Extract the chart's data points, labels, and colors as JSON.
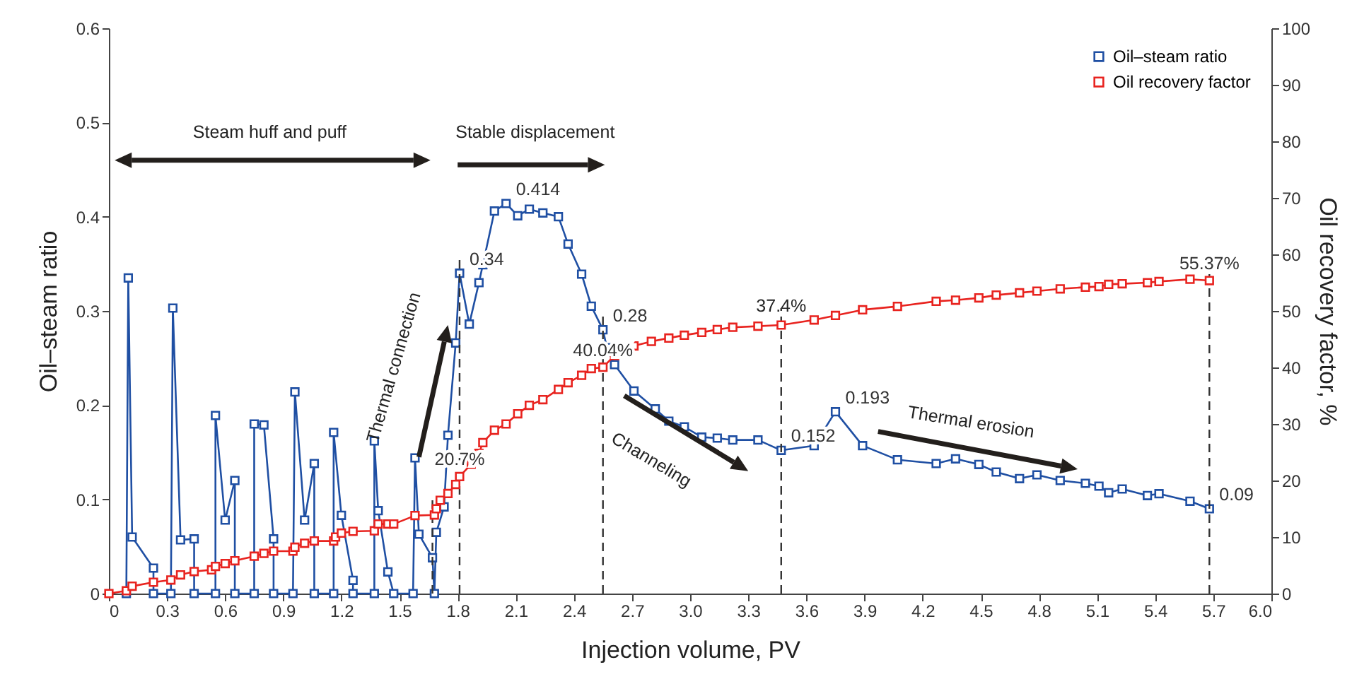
{
  "chart_data": {
    "type": "line",
    "xlabel": "Injection volume, PV",
    "ylabel": "Oil–steam ratio",
    "y2label": "Oil recovery factor, %",
    "xlim": [
      0,
      6
    ],
    "xticks": [
      0,
      0.3,
      0.6,
      0.9,
      1.2,
      1.5,
      1.8,
      2.1,
      2.4,
      2.7,
      {
        "value": 3,
        "label": "3.0"
      },
      3.3,
      3.6,
      3.9,
      4.2,
      4.5,
      4.8,
      5.1,
      5.4,
      5.7,
      {
        "value": 6,
        "label": "6.0"
      }
    ],
    "ylim": [
      0,
      0.6
    ],
    "yticks": [
      0,
      0.1,
      0.2,
      0.3,
      0.4,
      0.5,
      0.6
    ],
    "y2lim": [
      0,
      100
    ],
    "y2ticks": [
      0,
      10,
      20,
      30,
      40,
      50,
      60,
      70,
      80,
      90,
      100
    ],
    "marker": "square",
    "legend": "top right",
    "series": [
      {
        "name": "Oil–steam ratio",
        "color": "#1f4fa3",
        "x": [
          0.09,
          0.1,
          0.12,
          0.23,
          0.23,
          0.32,
          0.33,
          0.37,
          0.44,
          0.44,
          0.55,
          0.55,
          0.6,
          0.65,
          0.65,
          0.75,
          0.75,
          0.8,
          0.85,
          0.85,
          0.95,
          0.96,
          1.01,
          1.06,
          1.06,
          1.16,
          1.16,
          1.2,
          1.26,
          1.26,
          1.37,
          1.37,
          1.39,
          1.44,
          1.47,
          1.57,
          1.58,
          1.6,
          1.67,
          1.68,
          1.69,
          1.73,
          1.75,
          1.79,
          1.81,
          1.86,
          1.91,
          1.93,
          1.99,
          2.05,
          2.11,
          2.17,
          2.24,
          2.32,
          2.37,
          2.44,
          2.49,
          2.55,
          2.57,
          2.61,
          2.71,
          2.82,
          2.89,
          2.97,
          3.06,
          3.14,
          3.22,
          3.35,
          3.47,
          3.64,
          3.75,
          3.89,
          4.07,
          4.27,
          4.37,
          4.49,
          4.58,
          4.7,
          4.79,
          4.91,
          5.04,
          5.11,
          5.16,
          5.23,
          5.36,
          5.42,
          5.58,
          5.68
        ],
        "values": [
          0,
          0.335,
          0.06,
          0.027,
          0,
          0,
          0.303,
          0.057,
          0.058,
          0,
          0,
          0.189,
          0.078,
          0.12,
          0,
          0,
          0.18,
          0.179,
          0.058,
          0,
          0,
          0.214,
          0.078,
          0.138,
          0,
          0,
          0.171,
          0.083,
          0.014,
          0,
          0,
          0.162,
          0.088,
          0.023,
          0,
          0,
          0.144,
          0.063,
          0.038,
          0,
          0.065,
          0.092,
          0.168,
          0.266,
          0.34,
          0.286,
          0.33,
          0.349,
          0.406,
          0.414,
          0.401,
          0.408,
          0.404,
          0.4,
          0.371,
          0.339,
          0.305,
          0.28,
          0.261,
          0.243,
          0.215,
          0.196,
          0.183,
          0.177,
          0.166,
          0.165,
          0.163,
          0.163,
          0.152,
          0.157,
          0.193,
          0.157,
          0.142,
          0.138,
          0.143,
          0.137,
          0.129,
          0.122,
          0.126,
          0.12,
          0.117,
          0.114,
          0.107,
          0.111,
          0.104,
          0.106,
          0.098,
          0.09
        ],
        "value_labels": [
          null,
          null,
          null,
          null,
          null,
          null,
          null,
          null,
          null,
          null,
          null,
          null,
          null,
          null,
          null,
          null,
          null,
          null,
          null,
          null,
          null,
          null,
          null,
          null,
          null,
          null,
          null,
          null,
          null,
          null,
          null,
          null,
          null,
          null,
          null,
          null,
          null,
          null,
          null,
          null,
          null,
          null,
          null,
          null,
          "0.34",
          null,
          null,
          null,
          null,
          "0.414",
          null,
          null,
          null,
          null,
          null,
          null,
          null,
          "0.28",
          null,
          null,
          null,
          null,
          null,
          null,
          null,
          null,
          null,
          null,
          "0.152",
          null,
          "0.193",
          null,
          null,
          null,
          null,
          null,
          null,
          null,
          null,
          null,
          null,
          null,
          null,
          null,
          null,
          null,
          null,
          "0.09"
        ]
      },
      {
        "name": "Oil recovery factor",
        "color": "#e8231f",
        "axis": "y2",
        "x": [
          0,
          0.09,
          0.12,
          0.23,
          0.32,
          0.37,
          0.44,
          0.53,
          0.55,
          0.6,
          0.65,
          0.75,
          0.8,
          0.85,
          0.95,
          0.96,
          1.01,
          1.06,
          1.16,
          1.17,
          1.2,
          1.26,
          1.37,
          1.39,
          1.44,
          1.47,
          1.58,
          1.68,
          1.69,
          1.71,
          1.75,
          1.79,
          1.81,
          1.87,
          1.91,
          1.93,
          1.99,
          2.05,
          2.11,
          2.17,
          2.24,
          2.32,
          2.37,
          2.44,
          2.49,
          2.55,
          2.61,
          2.71,
          2.8,
          2.89,
          2.97,
          3.06,
          3.14,
          3.22,
          3.35,
          3.47,
          3.64,
          3.75,
          3.89,
          4.07,
          4.27,
          4.37,
          4.49,
          4.58,
          4.7,
          4.79,
          4.91,
          5.04,
          5.11,
          5.16,
          5.23,
          5.36,
          5.42,
          5.58,
          5.68
        ],
        "values": [
          0,
          0.5,
          1.3,
          2.0,
          2.4,
          3.3,
          3.9,
          4.2,
          4.8,
          5.3,
          5.8,
          6.6,
          7.1,
          7.5,
          7.5,
          8.2,
          8.9,
          9.3,
          9.3,
          10.0,
          10.7,
          11.0,
          11.1,
          12.3,
          12.3,
          12.3,
          13.8,
          13.9,
          15.0,
          16.5,
          17.7,
          19.3,
          20.7,
          22.9,
          24.8,
          26.7,
          28.9,
          30.0,
          31.8,
          33.3,
          34.3,
          36.1,
          37.3,
          38.6,
          39.8,
          40.04,
          42.1,
          43.8,
          44.6,
          45.2,
          45.7,
          46.2,
          46.7,
          47.1,
          47.3,
          47.5,
          48.4,
          49.2,
          50.2,
          50.8,
          51.7,
          51.9,
          52.3,
          52.8,
          53.2,
          53.5,
          53.9,
          54.2,
          54.3,
          54.7,
          54.8,
          55.0,
          55.2,
          55.6,
          55.37
        ],
        "value_labels": [
          null,
          null,
          null,
          null,
          null,
          null,
          null,
          null,
          null,
          null,
          null,
          null,
          null,
          null,
          null,
          null,
          null,
          null,
          null,
          null,
          null,
          null,
          null,
          null,
          null,
          null,
          null,
          null,
          null,
          null,
          null,
          null,
          "20.7%",
          null,
          null,
          null,
          null,
          null,
          null,
          null,
          null,
          null,
          null,
          null,
          null,
          "40.04%",
          null,
          null,
          null,
          null,
          null,
          null,
          null,
          null,
          null,
          null,
          null,
          null,
          null,
          null,
          null,
          null,
          null,
          null,
          null,
          null,
          null,
          null,
          null,
          null,
          null,
          null,
          null,
          null,
          "55.37%"
        ]
      }
    ],
    "ref_lines": [
      {
        "axis": "x",
        "value": 1.67
      },
      {
        "axis": "x",
        "value": 1.81
      },
      {
        "axis": "x",
        "value": 2.55
      },
      {
        "axis": "x",
        "value": 3.47
      },
      {
        "axis": "x",
        "value": 5.68
      }
    ],
    "annotations": [
      "Steam huff and puff",
      "Stable displacement",
      "Thermal connection",
      "Channeling",
      "Thermal erosion",
      "37.4%"
    ]
  }
}
